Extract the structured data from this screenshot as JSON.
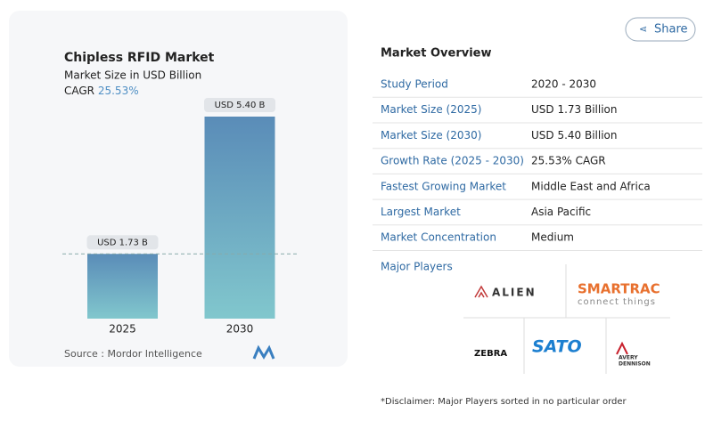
{
  "chart_data": {
    "type": "bar",
    "title": "Chipless RFID Market",
    "subtitle": "Market Size in USD Billion",
    "cagr_label": "CAGR",
    "cagr_value": "25.53%",
    "categories": [
      "2025",
      "2030"
    ],
    "values": [
      1.73,
      5.4
    ],
    "value_labels": [
      "USD 1.73 B",
      "USD 5.40 B"
    ],
    "gradient": [
      "#5a8cb8",
      "#81c7cd"
    ],
    "reference_line": true,
    "source_label": "Source :",
    "source": "Mordor Intelligence"
  },
  "share": "Share",
  "overview": {
    "title": "Market Overview",
    "rows": [
      [
        "Study Period",
        "2020 - 2030"
      ],
      [
        "Market Size (2025)",
        "USD 1.73 Billion"
      ],
      [
        "Market Size (2030)",
        "USD 5.40 Billion"
      ],
      [
        "Growth Rate (2025 - 2030)",
        "25.53% CAGR"
      ],
      [
        "Fastest Growing Market",
        "Middle East and Africa"
      ],
      [
        "Largest Market",
        "Asia Pacific"
      ],
      [
        "Market Concentration",
        "Medium"
      ]
    ]
  },
  "players": {
    "title": "Major Players",
    "logos": [
      "ALIEN",
      "SMARTRAC",
      "connect things",
      "ZEBRA",
      "SATO",
      "AVERY",
      "DENNISON"
    ]
  },
  "disclaimer": "*Disclaimer: Major Players sorted in no particular order"
}
